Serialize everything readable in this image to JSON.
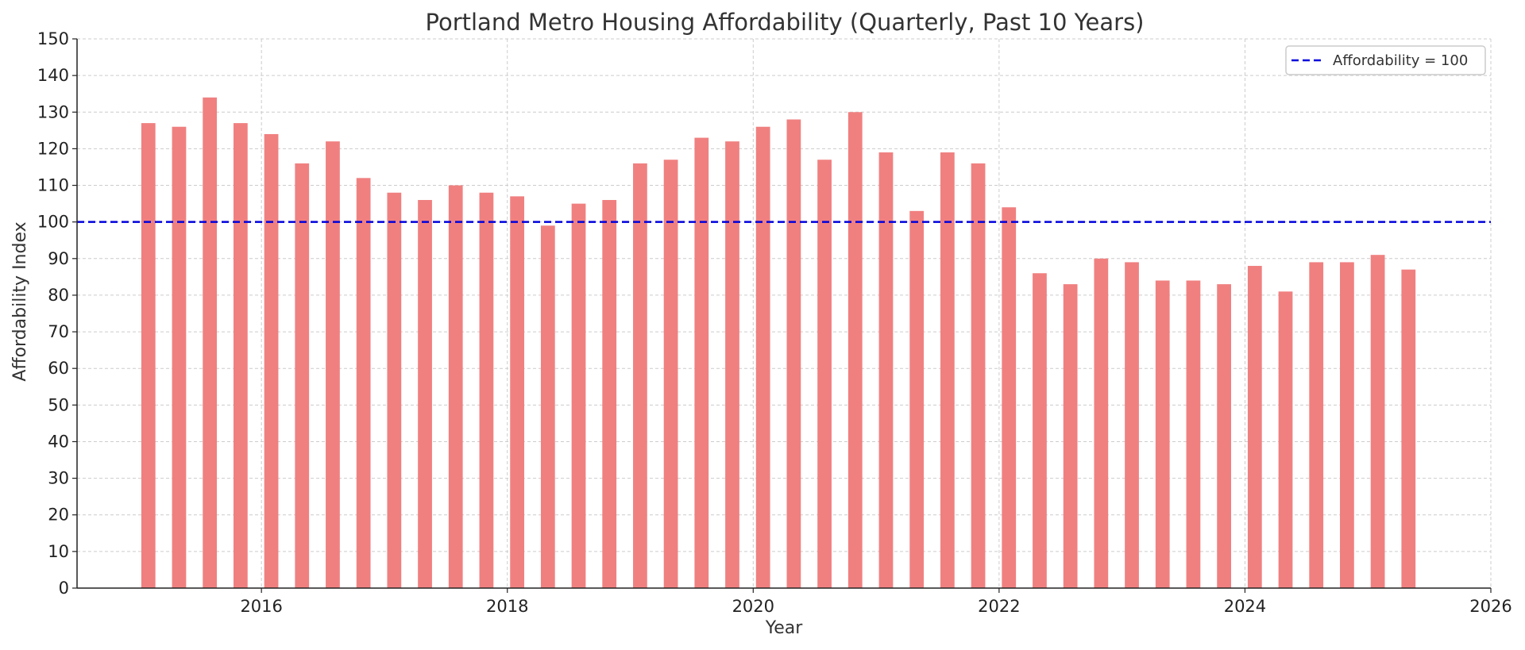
{
  "chart_data": {
    "type": "bar",
    "title": "Portland Metro Housing Affordability (Quarterly, Past 10 Years)",
    "xlabel": "Year",
    "ylabel": "Affordability Index",
    "xlim": [
      2014.5,
      2026
    ],
    "ylim": [
      0,
      150
    ],
    "xticks": [
      2016,
      2018,
      2020,
      2022,
      2024,
      2026
    ],
    "yticks": [
      0,
      10,
      20,
      30,
      40,
      50,
      60,
      70,
      80,
      90,
      100,
      110,
      120,
      130,
      140,
      150
    ],
    "grid": true,
    "bar_color": "#f08080",
    "x": [
      2015.08,
      2015.33,
      2015.58,
      2015.83,
      2016.08,
      2016.33,
      2016.58,
      2016.83,
      2017.08,
      2017.33,
      2017.58,
      2017.83,
      2018.08,
      2018.33,
      2018.58,
      2018.83,
      2019.08,
      2019.33,
      2019.58,
      2019.83,
      2020.08,
      2020.33,
      2020.58,
      2020.83,
      2021.08,
      2021.33,
      2021.58,
      2021.83,
      2022.08,
      2022.33,
      2022.58,
      2022.83,
      2023.08,
      2023.33,
      2023.58,
      2023.83,
      2024.08,
      2024.33,
      2024.58,
      2024.83,
      2025.08,
      2025.33
    ],
    "values": [
      127,
      126,
      134,
      127,
      124,
      116,
      122,
      112,
      108,
      106,
      110,
      108,
      107,
      99,
      105,
      106,
      116,
      117,
      123,
      122,
      126,
      128,
      117,
      130,
      119,
      103,
      119,
      116,
      104,
      86,
      83,
      90,
      89,
      84,
      84,
      83,
      88,
      81,
      89,
      89,
      91,
      87
    ],
    "reference_line": {
      "y": 100,
      "label": "Affordability = 100",
      "color": "#0000dd",
      "style": "dashed"
    },
    "legend": {
      "placement": "top-right",
      "entries": [
        "Affordability = 100"
      ]
    }
  }
}
